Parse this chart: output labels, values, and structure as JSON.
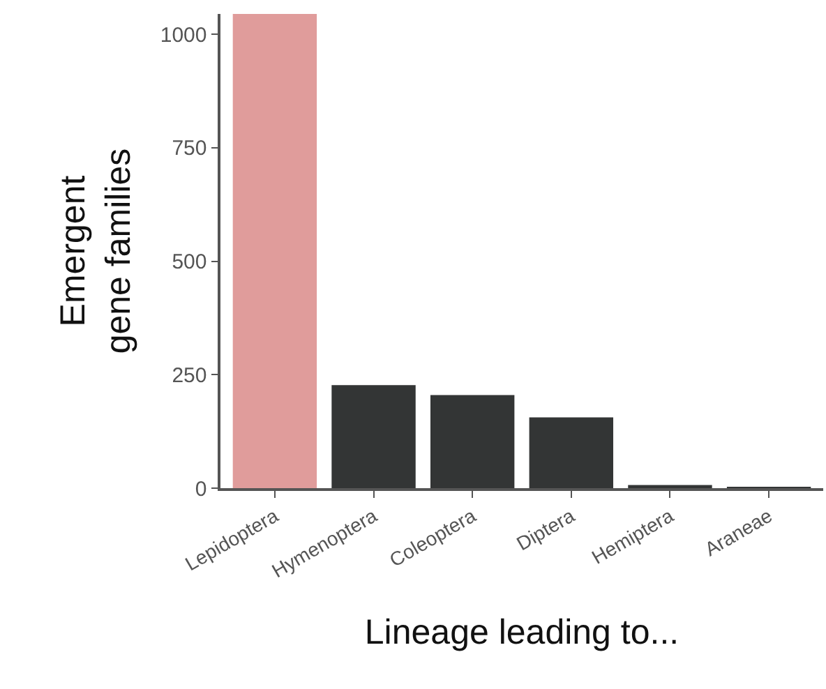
{
  "chart_data": {
    "type": "bar",
    "xlabel": "Lineage leading to...",
    "ylabel": "Emergent\ngene families",
    "categories": [
      "Lepidoptera",
      "Hymenoptera",
      "Coleoptera",
      "Diptera",
      "Hemiptera",
      "Araneae"
    ],
    "values": [
      1045,
      227,
      205,
      156,
      7,
      2
    ],
    "colors": [
      "#e09c9b",
      "#333535",
      "#333535",
      "#333535",
      "#333535",
      "#333535"
    ],
    "ylim": [
      0,
      1045
    ],
    "yticks": [
      0,
      250,
      500,
      750,
      1000
    ]
  }
}
